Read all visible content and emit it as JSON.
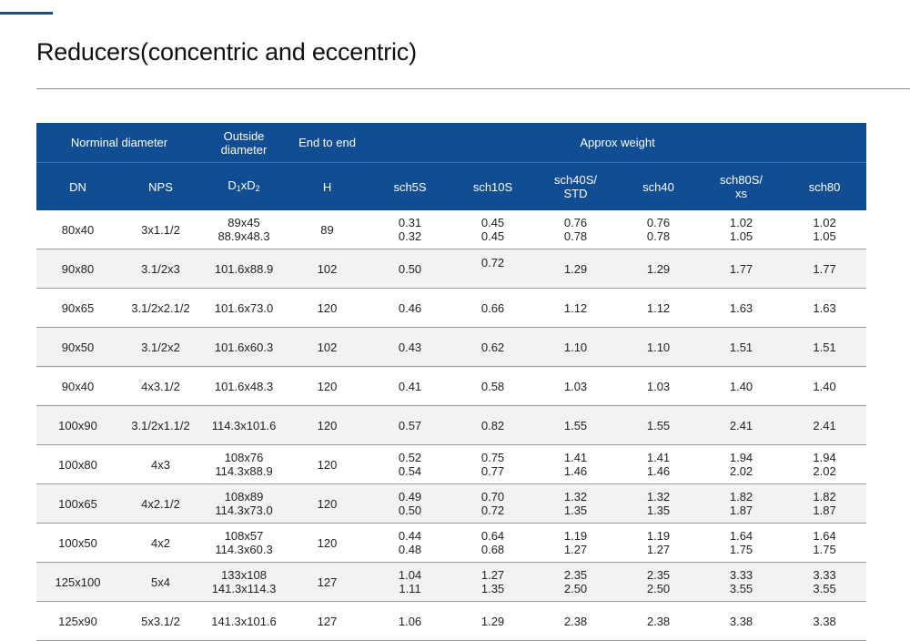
{
  "header": {
    "title": "Reducers(concentric and eccentric)"
  },
  "colors": {
    "accent": "#114d93",
    "header_bg": "#114d93",
    "alt_row": "#f2f2f2"
  },
  "table": {
    "group_headers": {
      "nominal_diameter": "Norminal diameter",
      "outside_diameter": [
        "Outside",
        "diameter"
      ],
      "end_to_end": "End to end",
      "approx_weight": "Approx weight"
    },
    "column_headers": {
      "dn": "DN",
      "nps": "NPS",
      "d_base": "D",
      "d_sub1": "1",
      "d_x": "x",
      "d_sub2": "2",
      "h": "H",
      "sch5s": "sch5S",
      "sch10s": "sch10S",
      "sch40s": [
        "sch40S/",
        "STD"
      ],
      "sch40": "sch40",
      "sch80s": [
        "sch80S/",
        "xs"
      ],
      "sch80": "sch80"
    },
    "rows": [
      {
        "dn": "80x40",
        "nps": "3x1.1/2",
        "od": [
          "89x45",
          "88.9x48.3"
        ],
        "h": "89",
        "sch5s": [
          "0.31",
          "0.32"
        ],
        "sch10s": [
          "0.45",
          "0.45"
        ],
        "sch40s": [
          "0.76",
          "0.78"
        ],
        "sch40": [
          "0.76",
          "0.78"
        ],
        "sch80s": [
          "1.02",
          "1.05"
        ],
        "sch80": [
          "1.02",
          "1.05"
        ]
      },
      {
        "dn": "90x80",
        "nps": "3.1/2x3",
        "od": [
          "101.6x88.9"
        ],
        "h": "102",
        "sch5s": [
          "0.50"
        ],
        "sch10s": [
          "0.72",
          ""
        ],
        "sch40s": [
          "1.29"
        ],
        "sch40": [
          "1.29"
        ],
        "sch80s": [
          "1.77"
        ],
        "sch80": [
          "1.77"
        ]
      },
      {
        "dn": "90x65",
        "nps": "3.1/2x2.1/2",
        "od": [
          "101.6x73.0"
        ],
        "h": "120",
        "sch5s": [
          "0.46"
        ],
        "sch10s": [
          "0.66"
        ],
        "sch40s": [
          "1.12"
        ],
        "sch40": [
          "1.12"
        ],
        "sch80s": [
          "1.63"
        ],
        "sch80": [
          "1.63"
        ]
      },
      {
        "dn": "90x50",
        "nps": "3.1/2x2",
        "od": [
          "101.6x60.3"
        ],
        "h": "102",
        "sch5s": [
          "0.43"
        ],
        "sch10s": [
          "0.62"
        ],
        "sch40s": [
          "1.10"
        ],
        "sch40": [
          "1.10"
        ],
        "sch80s": [
          "1.51"
        ],
        "sch80": [
          "1.51"
        ]
      },
      {
        "dn": "90x40",
        "nps": "4x3.1/2",
        "od": [
          "101.6x48.3"
        ],
        "h": "120",
        "sch5s": [
          "0.41"
        ],
        "sch10s": [
          "0.58"
        ],
        "sch40s": [
          "1.03"
        ],
        "sch40": [
          "1.03"
        ],
        "sch80s": [
          "1.40"
        ],
        "sch80": [
          "1.40"
        ]
      },
      {
        "dn": "100x90",
        "nps": "3.1/2x1.1/2",
        "od": [
          "114.3x101.6"
        ],
        "h": "120",
        "sch5s": [
          "0.57"
        ],
        "sch10s": [
          "0.82"
        ],
        "sch40s": [
          "1.55"
        ],
        "sch40": [
          "1.55"
        ],
        "sch80s": [
          "2.41"
        ],
        "sch80": [
          "2.41"
        ]
      },
      {
        "dn": "100x80",
        "nps": "4x3",
        "od": [
          "108x76",
          "114.3x88.9"
        ],
        "h": "120",
        "sch5s": [
          "0.52",
          "0.54"
        ],
        "sch10s": [
          "0.75",
          "0.77"
        ],
        "sch40s": [
          "1.41",
          "1.46"
        ],
        "sch40": [
          "1.41",
          "1.46"
        ],
        "sch80s": [
          "1.94",
          "2.02"
        ],
        "sch80": [
          "1.94",
          "2.02"
        ]
      },
      {
        "dn": "100x65",
        "nps": "4x2.1/2",
        "od": [
          "108x89",
          "114.3x73.0"
        ],
        "h": "120",
        "sch5s": [
          "0.49",
          "0.50"
        ],
        "sch10s": [
          "0.70",
          "0.72"
        ],
        "sch40s": [
          "1.32",
          "1.35"
        ],
        "sch40": [
          "1.32",
          "1.35"
        ],
        "sch80s": [
          "1.82",
          "1.87"
        ],
        "sch80": [
          "1.82",
          "1.87"
        ]
      },
      {
        "dn": "100x50",
        "nps": "4x2",
        "od": [
          "108x57",
          "114.3x60.3"
        ],
        "h": "120",
        "sch5s": [
          "0.44",
          "0.48"
        ],
        "sch10s": [
          "0.64",
          "0.68"
        ],
        "sch40s": [
          "1.19",
          "1.27"
        ],
        "sch40": [
          "1.19",
          "1.27"
        ],
        "sch80s": [
          "1.64",
          "1.75"
        ],
        "sch80": [
          "1.64",
          "1.75"
        ]
      },
      {
        "dn": "125x100",
        "nps": "5x4",
        "od": [
          "133x108",
          "141.3x114.3"
        ],
        "h": "127",
        "sch5s": [
          "1.04",
          "1.11"
        ],
        "sch10s": [
          "1.27",
          "1.35"
        ],
        "sch40s": [
          "2.35",
          "2.50"
        ],
        "sch40": [
          "2.35",
          "2.50"
        ],
        "sch80s": [
          "3.33",
          "3.55"
        ],
        "sch80": [
          "3.33",
          "3.55"
        ]
      },
      {
        "dn": "125x90",
        "nps": "5x3.1/2",
        "od": [
          "141.3x101.6"
        ],
        "h": "127",
        "sch5s": [
          "1.06"
        ],
        "sch10s": [
          "1.29"
        ],
        "sch40s": [
          "2.38"
        ],
        "sch40": [
          "2.38"
        ],
        "sch80s": [
          "3.38"
        ],
        "sch80": [
          "3.38"
        ]
      }
    ]
  }
}
